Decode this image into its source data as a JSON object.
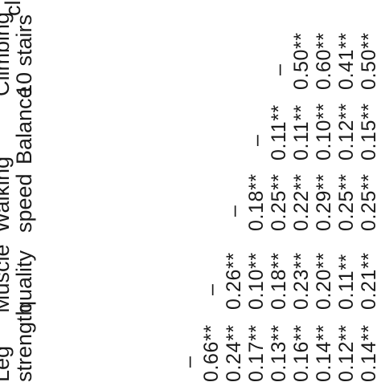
{
  "headers": {
    "leg_strength": [
      "Leg",
      "strength"
    ],
    "muscle_quality": [
      "Muscle",
      "quality"
    ],
    "walking_speed": [
      "Walking",
      "speed"
    ],
    "balance": [
      "Balance"
    ],
    "climbing": [
      "Climbing",
      "10 stairs"
    ],
    "cut_off": "cl"
  },
  "columns": {
    "leg_strength": [
      "–",
      "0.66**",
      "0.24**",
      "0.17**",
      "0.13**",
      "0.16**",
      "0.14**",
      "0.12**",
      "0.14**"
    ],
    "muscle_quality": [
      "–",
      "0.26**",
      "0.10**",
      "0.18**",
      "0.23**",
      "0.20**",
      "0.11**",
      "0.21**"
    ],
    "walking_speed": [
      "–",
      "0.18**",
      "0.25**",
      "0.22**",
      "0.29**",
      "0.25**",
      "0.25**"
    ],
    "balance": [
      "–",
      "0.11**",
      "0.11**",
      "0.10**",
      "0.12**",
      "0.15**"
    ],
    "climbing": [
      "–",
      "0.50**",
      "0.60**",
      "0.41**",
      "0.50**"
    ]
  }
}
